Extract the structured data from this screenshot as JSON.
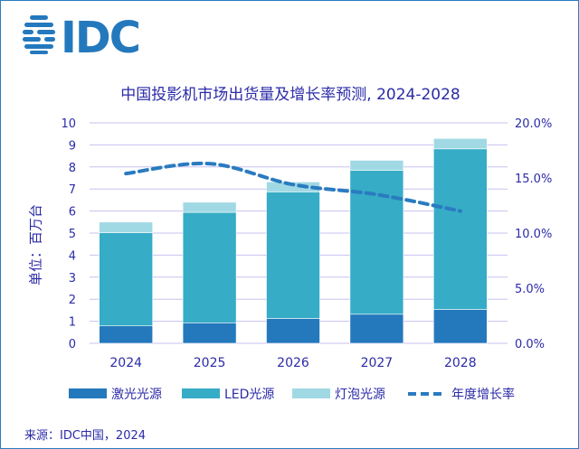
{
  "logo_text": "IDC",
  "source": "来源：IDC中国，2024",
  "colors": {
    "laser": "#2479bd",
    "led": "#36acc6",
    "bulb": "#a0d9e4",
    "growth": "#2a7bc0",
    "text": "#2b2ba8",
    "grid": "#c8c0f0"
  },
  "chart_data": {
    "type": "bar",
    "stacked": true,
    "title": "中国投影机市场出货量及增长率预测, 2024-2028",
    "ylabel": "单位：百万台",
    "categories": [
      "2024",
      "2025",
      "2026",
      "2027",
      "2028"
    ],
    "ylim": [
      0,
      10
    ],
    "yticks": [
      "0",
      "1",
      "2",
      "3",
      "4",
      "5",
      "6",
      "7",
      "8",
      "9",
      "10"
    ],
    "y2lim": [
      0,
      20
    ],
    "y2ticks": [
      "0.0%",
      "5.0%",
      "10.0%",
      "15.0%",
      "20.0%"
    ],
    "grid": true,
    "legend_position": "bottom",
    "series": [
      {
        "name": "激光光源",
        "values": [
          0.79,
          0.93,
          1.13,
          1.32,
          1.54
        ]
      },
      {
        "name": "LED光源",
        "values": [
          4.23,
          5.01,
          5.74,
          6.52,
          7.28
        ]
      },
      {
        "name": "灯泡光源",
        "values": [
          0.48,
          0.46,
          0.45,
          0.46,
          0.47
        ]
      }
    ],
    "line_series": {
      "name": "年度增长率",
      "axis": "right",
      "unit": "%",
      "values": [
        15.4,
        16.3,
        14.4,
        13.5,
        12.0
      ]
    }
  }
}
